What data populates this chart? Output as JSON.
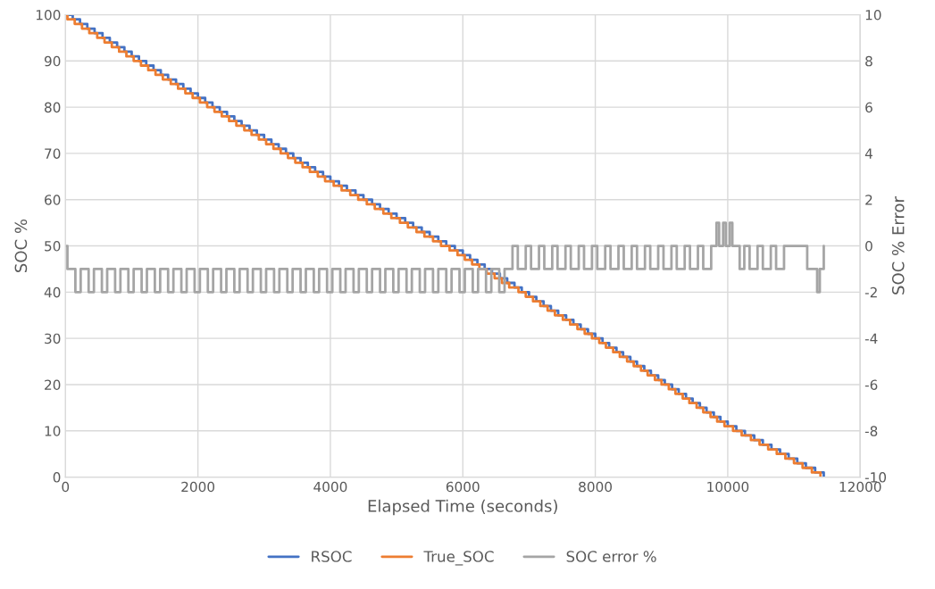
{
  "chart_data": {
    "type": "step",
    "xlabel": "Elapsed Time (seconds)",
    "ylabel": "SOC %",
    "y2label": "SOC % Error",
    "xlim": [
      0,
      12000
    ],
    "xticks": [
      0,
      2000,
      4000,
      6000,
      8000,
      10000,
      12000
    ],
    "ylim": [
      0,
      100
    ],
    "yticks": [
      0,
      10,
      20,
      30,
      40,
      50,
      60,
      70,
      80,
      90,
      100
    ],
    "y2lim": [
      -10,
      10
    ],
    "y2ticks": [
      -10,
      -8,
      -6,
      -4,
      -2,
      0,
      2,
      4,
      6,
      8,
      10
    ],
    "grid": true,
    "legend": "bottom",
    "line_style": "solid",
    "marker": "none",
    "series": [
      {
        "name": "RSOC",
        "color": "#4472c4",
        "x": [
          0,
          110,
          220,
          330,
          440,
          560,
          670,
          780,
          890,
          1000,
          1110,
          1220,
          1330,
          1440,
          1550,
          1670,
          1780,
          1890,
          2000,
          2110,
          2220,
          2330,
          2440,
          2550,
          2660,
          2780,
          2890,
          3000,
          3110,
          3220,
          3330,
          3440,
          3550,
          3660,
          3770,
          3890,
          4000,
          4130,
          4250,
          4380,
          4500,
          4630,
          4750,
          4880,
          5000,
          5130,
          5250,
          5380,
          5500,
          5630,
          5750,
          5880,
          6000,
          6110,
          6220,
          6330,
          6440,
          6560,
          6670,
          6780,
          6890,
          7000,
          7110,
          7220,
          7330,
          7440,
          7560,
          7670,
          7780,
          7890,
          8000,
          8110,
          8210,
          8320,
          8420,
          8530,
          8630,
          8740,
          8840,
          8950,
          9050,
          9160,
          9260,
          9370,
          9470,
          9580,
          9680,
          9790,
          9890,
          10000,
          10130,
          10260,
          10400,
          10530,
          10660,
          10790,
          10920,
          11050,
          11180,
          11320,
          11450
        ],
        "values": [
          100,
          99,
          98,
          97,
          96,
          95,
          94,
          93,
          92,
          91,
          90,
          89,
          88,
          87,
          86,
          85,
          84,
          83,
          82,
          81,
          80,
          79,
          78,
          77,
          76,
          75,
          74,
          73,
          72,
          71,
          70,
          69,
          68,
          67,
          66,
          65,
          64,
          63,
          62,
          61,
          60,
          59,
          58,
          57,
          56,
          55,
          54,
          53,
          52,
          51,
          50,
          49,
          48,
          47,
          46,
          45,
          44,
          43,
          42,
          41,
          40,
          39,
          38,
          37,
          36,
          35,
          34,
          33,
          32,
          31,
          30,
          29,
          28,
          27,
          26,
          25,
          24,
          23,
          22,
          21,
          20,
          19,
          18,
          17,
          16,
          15,
          14,
          13,
          12,
          11,
          10,
          9,
          8,
          7,
          6,
          5,
          4,
          3,
          2,
          1,
          0
        ]
      },
      {
        "name": "True_SOC",
        "color": "#ed7d31",
        "x": [
          0,
          30,
          140,
          250,
          360,
          480,
          590,
          700,
          810,
          920,
          1030,
          1140,
          1250,
          1360,
          1470,
          1590,
          1700,
          1810,
          1920,
          2030,
          2140,
          2250,
          2360,
          2470,
          2580,
          2700,
          2810,
          2920,
          3030,
          3140,
          3250,
          3360,
          3470,
          3580,
          3690,
          3810,
          3920,
          4050,
          4170,
          4300,
          4420,
          4550,
          4670,
          4800,
          4920,
          5050,
          5170,
          5300,
          5420,
          5550,
          5670,
          5800,
          5920,
          6030,
          6140,
          6250,
          6360,
          6480,
          6590,
          6700,
          6840,
          6950,
          7060,
          7170,
          7280,
          7390,
          7510,
          7620,
          7730,
          7840,
          7950,
          8060,
          8160,
          8270,
          8370,
          8480,
          8580,
          8690,
          8790,
          8900,
          9000,
          9110,
          9210,
          9320,
          9420,
          9530,
          9630,
          9740,
          9840,
          9950,
          10080,
          10210,
          10350,
          10480,
          10610,
          10740,
          10870,
          11000,
          11130,
          11270,
          11400
        ],
        "values": [
          100,
          99,
          98,
          97,
          96,
          95,
          94,
          93,
          92,
          91,
          90,
          89,
          88,
          87,
          86,
          85,
          84,
          83,
          82,
          81,
          80,
          79,
          78,
          77,
          76,
          75,
          74,
          73,
          72,
          71,
          70,
          69,
          68,
          67,
          66,
          65,
          64,
          63,
          62,
          61,
          60,
          59,
          58,
          57,
          56,
          55,
          54,
          53,
          52,
          51,
          50,
          49,
          48,
          47,
          46,
          45,
          44,
          43,
          42,
          41,
          40,
          39,
          38,
          37,
          36,
          35,
          34,
          33,
          32,
          31,
          30,
          29,
          28,
          27,
          26,
          25,
          24,
          23,
          22,
          21,
          20,
          19,
          18,
          17,
          16,
          15,
          14,
          13,
          12,
          11,
          10,
          9,
          8,
          7,
          6,
          5,
          4,
          3,
          2,
          1,
          0
        ]
      },
      {
        "name": "SOC error %",
        "color": "#a5a5a5",
        "axis": "y2",
        "x": [
          0,
          30,
          150,
          230,
          350,
          430,
          550,
          630,
          750,
          830,
          950,
          1030,
          1150,
          1230,
          1350,
          1430,
          1550,
          1630,
          1750,
          1830,
          1950,
          2030,
          2150,
          2230,
          2350,
          2430,
          2550,
          2630,
          2750,
          2830,
          2950,
          3030,
          3150,
          3230,
          3350,
          3430,
          3550,
          3630,
          3750,
          3830,
          3950,
          4030,
          4150,
          4230,
          4350,
          4430,
          4550,
          4630,
          4750,
          4830,
          4950,
          5030,
          5150,
          5230,
          5350,
          5430,
          5550,
          5630,
          5750,
          5830,
          5950,
          6030,
          6150,
          6230,
          6350,
          6430,
          6550,
          6630,
          6750,
          6830,
          6950,
          7030,
          7150,
          7230,
          7350,
          7430,
          7550,
          7630,
          7750,
          7830,
          7950,
          8030,
          8150,
          8230,
          8350,
          8430,
          8550,
          8630,
          8750,
          8830,
          8950,
          9030,
          9150,
          9230,
          9350,
          9430,
          9550,
          9630,
          9750,
          9830,
          9870,
          9930,
          9970,
          10030,
          10070,
          10180,
          10250,
          10330,
          10450,
          10530,
          10650,
          10730,
          10850,
          11200,
          11350,
          11390,
          11450
        ],
        "values": [
          0,
          -1,
          -2,
          -1,
          -2,
          -1,
          -2,
          -1,
          -2,
          -1,
          -2,
          -1,
          -2,
          -1,
          -2,
          -1,
          -2,
          -1,
          -2,
          -1,
          -2,
          -1,
          -2,
          -1,
          -2,
          -1,
          -2,
          -1,
          -2,
          -1,
          -2,
          -1,
          -2,
          -1,
          -2,
          -1,
          -2,
          -1,
          -2,
          -1,
          -2,
          -1,
          -2,
          -1,
          -2,
          -1,
          -2,
          -1,
          -2,
          -1,
          -2,
          -1,
          -2,
          -1,
          -2,
          -1,
          -2,
          -1,
          -2,
          -1,
          -2,
          -1,
          -2,
          -1,
          -2,
          -1,
          -2,
          -1,
          0,
          -1,
          0,
          -1,
          0,
          -1,
          0,
          -1,
          0,
          -1,
          0,
          -1,
          0,
          -1,
          0,
          -1,
          0,
          -1,
          0,
          -1,
          0,
          -1,
          0,
          -1,
          0,
          -1,
          0,
          -1,
          0,
          -1,
          0,
          1,
          0,
          1,
          0,
          1,
          0,
          -1,
          0,
          -1,
          0,
          -1,
          0,
          -1,
          0,
          -1,
          -2,
          -1,
          0
        ]
      }
    ]
  }
}
